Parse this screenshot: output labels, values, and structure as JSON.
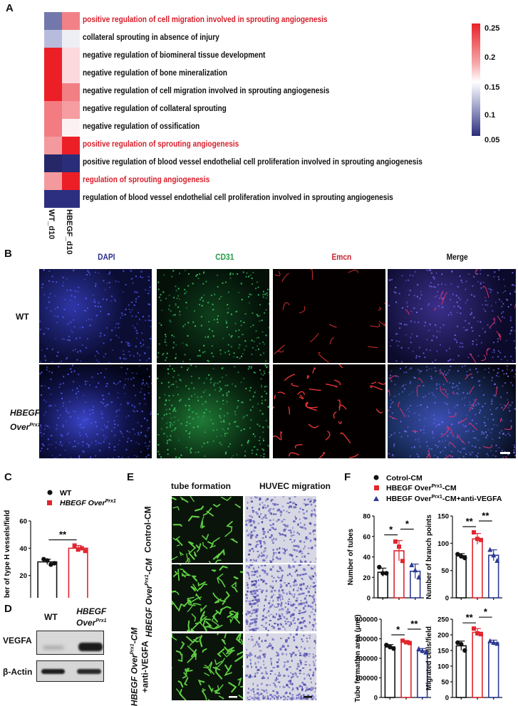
{
  "panels": {
    "A": {
      "label": "A",
      "columns": [
        "WT_d10",
        "HBEGF_d10"
      ],
      "terms": [
        {
          "text": "positive regulation of cell migration involved in sprouting angiogenesis",
          "highlight": true,
          "colors": [
            "#7378ac",
            "#f18186"
          ]
        },
        {
          "text": "collateral sprouting in absence of injury",
          "highlight": false,
          "colors": [
            "#b8bcdc",
            "#eeeef5"
          ]
        },
        {
          "text": "negative regulation of biomineral tissue development",
          "highlight": false,
          "colors": [
            "#ec1f27",
            "#fbd9dc"
          ]
        },
        {
          "text": "negative regulation of bone mineralization",
          "highlight": false,
          "colors": [
            "#ec1f27",
            "#fbd9dc"
          ]
        },
        {
          "text": "negative regulation of cell migration involved in sprouting angiogenesis",
          "highlight": false,
          "colors": [
            "#ec1f27",
            "#f17f84"
          ]
        },
        {
          "text": "negative regulation of collateral sprouting",
          "highlight": false,
          "colors": [
            "#f27c82",
            "#f59da1"
          ]
        },
        {
          "text": "negative regulation of ossification",
          "highlight": false,
          "colors": [
            "#f27c82",
            "#fbf1f2"
          ]
        },
        {
          "text": "positive regulation of sprouting angiogenesis",
          "highlight": true,
          "colors": [
            "#f4999d",
            "#ec1f27"
          ]
        },
        {
          "text": "positive regulation of blood vessel endothelial cell proliferation involved in sprouting angiogenesis",
          "highlight": false,
          "colors": [
            "#252769",
            "#2a2d78"
          ]
        },
        {
          "text": "regulation of sprouting angiogenesis",
          "highlight": true,
          "colors": [
            "#f4999d",
            "#ec1f27"
          ]
        },
        {
          "text": "regulation of blood vessel endothelial cell proliferation involved in sprouting angiogenesis",
          "highlight": false,
          "colors": [
            "#2c2f80",
            "#2c2f80"
          ]
        }
      ],
      "colorbar": {
        "ticks": [
          "0.25",
          "0.2",
          "0.15",
          "0.1",
          "0.05"
        ],
        "high_color": "#e8232a",
        "mid_color": "#ffffff",
        "low_color": "#2b2d7a"
      }
    },
    "B": {
      "label": "B",
      "channels": [
        {
          "name": "DAPI",
          "color": "#2b2f8f"
        },
        {
          "name": "CD31",
          "color": "#1e9a45"
        },
        {
          "name": "Emcn",
          "color": "#c8202a"
        },
        {
          "name": "Merge",
          "color": "#111111"
        }
      ],
      "rows": [
        {
          "label": "WT",
          "italic": false
        },
        {
          "label": "HBEGF",
          "label_line2": "Over",
          "sup": "Prx1",
          "italic": true
        }
      ]
    },
    "C": {
      "label": "C",
      "legend": [
        {
          "name": "WT",
          "marker": "circle",
          "color": "#111111"
        },
        {
          "name": "HBEGF Over",
          "sup": "Prx1",
          "marker": "square",
          "color": "#e0262f"
        }
      ],
      "ylabel": "Number of type H vessels/field",
      "yticks": [
        "0",
        "20",
        "40",
        "60"
      ],
      "significance": "**"
    },
    "D": {
      "label": "D",
      "columns": [
        "WT",
        "HBEGF",
        "Over"
      ],
      "col2_sup": "Prx1",
      "rows": [
        "VEGFA",
        "β-Actin"
      ]
    },
    "E": {
      "label": "E",
      "columns": [
        "tube formation",
        "HUVEC migration"
      ],
      "rows": [
        "Control-CM",
        "HBEGF Over",
        "HBEGF Over"
      ],
      "row_sup": "Prx1",
      "row_suffix": [
        "",
        "-CM",
        "-CM"
      ],
      "row_line2": [
        "",
        "",
        "+anti-VEGFA"
      ]
    },
    "F": {
      "label": "F",
      "legend": [
        {
          "name": "Cotrol-CM",
          "marker": "circle",
          "color": "#111111"
        },
        {
          "name": "HBEGF Over",
          "sup": "Prx1",
          "suffix": "-CM",
          "marker": "square",
          "color": "#e0262f"
        },
        {
          "name": "HBEGF Over",
          "sup": "Prx1",
          "suffix": "-CM+anti-VEGFA",
          "marker": "triangle",
          "color": "#2d3a94"
        }
      ]
    }
  },
  "chart_data": [
    {
      "panel": "C",
      "type": "bar",
      "categories": [
        "WT",
        "HBEGF OverPrx1"
      ],
      "values": [
        30,
        40
      ],
      "error": [
        2,
        2
      ],
      "points": [
        [
          32,
          31,
          28,
          29
        ],
        [
          42,
          39,
          40,
          38
        ]
      ],
      "ylabel": "Number of type H vessels/field",
      "ylim": [
        0,
        60
      ],
      "significance": [
        {
          "pair": [
            0,
            1
          ],
          "label": "**"
        }
      ]
    },
    {
      "panel": "F1",
      "type": "bar",
      "categories": [
        "Cotrol-CM",
        "HBEGF OverPrx1-CM",
        "HBEGF OverPrx1-CM+anti-VEGFA"
      ],
      "values": [
        25,
        46,
        26
      ],
      "error": [
        4,
        10,
        7
      ],
      "points": [
        [
          30,
          24,
          24
        ],
        [
          55,
          50,
          36
        ],
        [
          32,
          27,
          20
        ]
      ],
      "ylabel": "Number of tubes",
      "ylim": [
        0,
        80
      ],
      "yticks": [
        0,
        20,
        40,
        60,
        80
      ],
      "significance": [
        {
          "pair": [
            0,
            1
          ],
          "label": "*"
        },
        {
          "pair": [
            1,
            2
          ],
          "label": "*"
        }
      ]
    },
    {
      "panel": "F2",
      "type": "bar",
      "categories": [
        "Cotrol-CM",
        "HBEGF OverPrx1-CM",
        "HBEGF OverPrx1-CM+anti-VEGFA"
      ],
      "values": [
        77,
        108,
        78
      ],
      "error": [
        4,
        10,
        10
      ],
      "points": [
        [
          80,
          76,
          73
        ],
        [
          120,
          108,
          106
        ],
        [
          88,
          78,
          68
        ]
      ],
      "ylabel": "Number of branch points",
      "ylim": [
        0,
        150
      ],
      "yticks": [
        0,
        50,
        100,
        150
      ],
      "significance": [
        {
          "pair": [
            0,
            1
          ],
          "label": "**"
        },
        {
          "pair": [
            1,
            2
          ],
          "label": "**"
        }
      ]
    },
    {
      "panel": "F3",
      "type": "bar",
      "categories": [
        "Cotrol-CM",
        "HBEGF OverPrx1-CM",
        "HBEGF OverPrx1-CM+anti-VEGFA"
      ],
      "values": [
        258000,
        283000,
        238000
      ],
      "error": [
        12000,
        8000,
        12000
      ],
      "points": [
        [
          268000,
          258000,
          250000
        ],
        [
          290000,
          282000,
          278000
        ],
        [
          248000,
          238000,
          230000
        ]
      ],
      "ylabel": "Tube formation area (μm²)",
      "ylim": [
        0,
        400000
      ],
      "yticks": [
        0,
        100000,
        200000,
        300000,
        400000
      ],
      "significance": [
        {
          "pair": [
            0,
            1
          ],
          "label": "*"
        },
        {
          "pair": [
            1,
            2
          ],
          "label": "**"
        }
      ]
    },
    {
      "panel": "F4",
      "type": "bar",
      "categories": [
        "Cotrol-CM",
        "HBEGF OverPrx1-CM",
        "HBEGF OverPrx1-CM+anti-VEGFA"
      ],
      "values": [
        165,
        208,
        175
      ],
      "error": [
        15,
        12,
        8
      ],
      "points": [
        [
          175,
          170,
          150
        ],
        [
          220,
          205,
          202
        ],
        [
          180,
          175,
          172
        ]
      ],
      "ylabel": "Migrated cells/field",
      "ylim": [
        0,
        250
      ],
      "yticks": [
        0,
        50,
        100,
        150,
        200,
        250
      ],
      "significance": [
        {
          "pair": [
            0,
            1
          ],
          "label": "**"
        },
        {
          "pair": [
            1,
            2
          ],
          "label": "*"
        }
      ]
    }
  ]
}
